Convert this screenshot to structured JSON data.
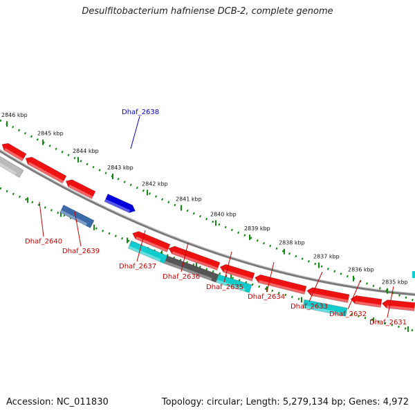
{
  "title": "Desulfitobacterium hafniense DCB-2, complete genome",
  "footer": {
    "accession": "Accession: NC_011830",
    "info": "Topology: circular; Length: 5,279,134 bp; Genes: 4,972"
  },
  "colors": {
    "forward_gene": "#ee1111",
    "reverse_gene_cyan": "#11cccc",
    "reverse_gene_gray": "#555555",
    "reverse_gene_light": "#bbbbbb",
    "reverse_gene_steel": "#3a6aa8",
    "highlight_gene": "#0000dd",
    "backbone": "#7a7a7a",
    "scale_dots": "#118811",
    "label_red": "#cc0000",
    "label_blue": "#0000cc"
  },
  "scale_labels": [
    "2846 kbp",
    "2845 kbp",
    "2844 kbp",
    "2843 kbp",
    "2842 kbp",
    "2841 kbp",
    "2840 kbp",
    "2839 kbp",
    "2838 kbp",
    "2837 kbp",
    "2836 kbp",
    "2835 kbp"
  ],
  "gene_labels": [
    {
      "text": "Dhaf_2638",
      "color": "blue"
    },
    {
      "text": "Dhaf_2640",
      "color": "red"
    },
    {
      "text": "Dhaf_2639",
      "color": "red"
    },
    {
      "text": "Dhaf_2637",
      "color": "red"
    },
    {
      "text": "Dhaf_2636",
      "color": "red"
    },
    {
      "text": "Dhaf_2635",
      "color": "red"
    },
    {
      "text": "Dhaf_2634",
      "color": "red"
    },
    {
      "text": "Dhaf_2633",
      "color": "red"
    },
    {
      "text": "Dhaf_2632",
      "color": "red"
    },
    {
      "text": "Dhaf_2631",
      "color": "red"
    }
  ]
}
